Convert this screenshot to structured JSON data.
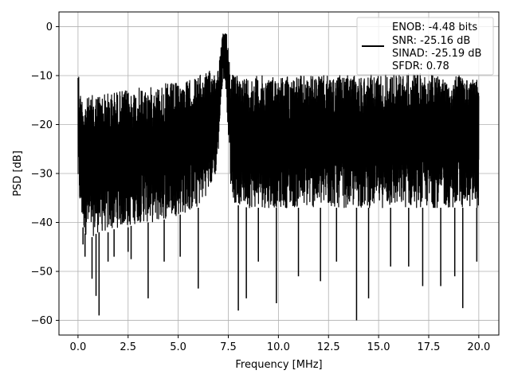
{
  "chart_data": {
    "type": "line",
    "title": "",
    "xlabel": "Frequency [MHz]",
    "ylabel": "PSD [dB]",
    "xlim": [
      -0.95,
      21.0
    ],
    "ylim": [
      -63.0,
      3.0
    ],
    "xticks": [
      0.0,
      2.5,
      5.0,
      7.5,
      10.0,
      12.5,
      15.0,
      17.5,
      20.0
    ],
    "xtick_labels": [
      "0.0",
      "2.5",
      "5.0",
      "7.5",
      "10.0",
      "12.5",
      "15.0",
      "17.5",
      "20.0"
    ],
    "yticks": [
      0,
      -10,
      -20,
      -30,
      -40,
      -50,
      -60
    ],
    "ytick_labels": [
      "0",
      "−10",
      "−20",
      "−30",
      "−40",
      "−50",
      "−60"
    ],
    "grid": true,
    "legend_position": "top-right",
    "series": [
      {
        "name": "ENOB: -4.48 bits\nSNR: -25.16 dB\nSINAD: -25.19 dB\nSFDR: 0.78",
        "color": "#000000",
        "x": [
          0.0,
          0.05,
          0.1,
          0.2,
          0.3,
          0.5,
          0.7,
          1.0,
          1.5,
          2.0,
          2.5,
          3.0,
          3.5,
          4.0,
          4.5,
          5.0,
          5.5,
          6.0,
          6.3,
          6.6,
          6.9,
          7.0,
          7.1,
          7.2,
          7.3,
          7.4,
          7.5,
          7.6,
          7.8,
          8.0,
          8.5,
          9.0,
          10.0,
          11.0,
          12.0,
          13.0,
          14.0,
          15.0,
          16.0,
          17.0,
          18.0,
          19.0,
          20.0
        ],
        "upper": [
          -3.5,
          -10.5,
          -13,
          -14,
          -14.5,
          -14.5,
          -14,
          -13.5,
          -13.5,
          -13,
          -13,
          -12.5,
          -12.5,
          -12,
          -11.5,
          -11.5,
          -11,
          -10,
          -9.5,
          -9,
          -8.5,
          -8,
          -5.5,
          -2,
          -0.5,
          -1,
          -3,
          -9,
          -10,
          -10,
          -10,
          -10,
          -10,
          -10,
          -10,
          -10,
          -10,
          -9.5,
          -9.5,
          -9.5,
          -10,
          -10,
          -10.5
        ],
        "lower": [
          -34,
          -35,
          -38,
          -40,
          -42,
          -43,
          -43,
          -42,
          -42,
          -41,
          -41,
          -40,
          -40,
          -40,
          -39,
          -38.5,
          -38,
          -37,
          -35,
          -33,
          -30,
          -26,
          -18,
          -12,
          -10,
          -14,
          -22,
          -32,
          -36,
          -36.5,
          -37,
          -37,
          -37,
          -37,
          -37,
          -37,
          -37,
          -37,
          -37,
          -37,
          -37,
          -37,
          -37
        ],
        "dips": [
          [
            0.25,
            -44.5
          ],
          [
            0.35,
            -47
          ],
          [
            0.7,
            -51.5
          ],
          [
            0.9,
            -55
          ],
          [
            1.05,
            -59
          ],
          [
            1.5,
            -48
          ],
          [
            1.8,
            -47
          ],
          [
            2.5,
            -46
          ],
          [
            2.65,
            -47.5
          ],
          [
            3.5,
            -55.5
          ],
          [
            4.3,
            -48
          ],
          [
            5.1,
            -47
          ],
          [
            6.0,
            -53.5
          ],
          [
            8.0,
            -58
          ],
          [
            8.4,
            -55.5
          ],
          [
            9.0,
            -48
          ],
          [
            9.9,
            -56.5
          ],
          [
            11.0,
            -51
          ],
          [
            12.1,
            -52
          ],
          [
            12.9,
            -48
          ],
          [
            13.9,
            -60
          ],
          [
            14.5,
            -55.5
          ],
          [
            15.6,
            -49
          ],
          [
            16.5,
            -49
          ],
          [
            17.2,
            -53
          ],
          [
            18.1,
            -53
          ],
          [
            18.8,
            -51
          ],
          [
            19.2,
            -57.5
          ],
          [
            19.9,
            -48
          ]
        ]
      }
    ]
  },
  "legend": {
    "lines": [
      "ENOB: -4.48 bits",
      "SNR: -25.16 dB",
      "SINAD: -25.19 dB",
      "SFDR: 0.78"
    ]
  }
}
